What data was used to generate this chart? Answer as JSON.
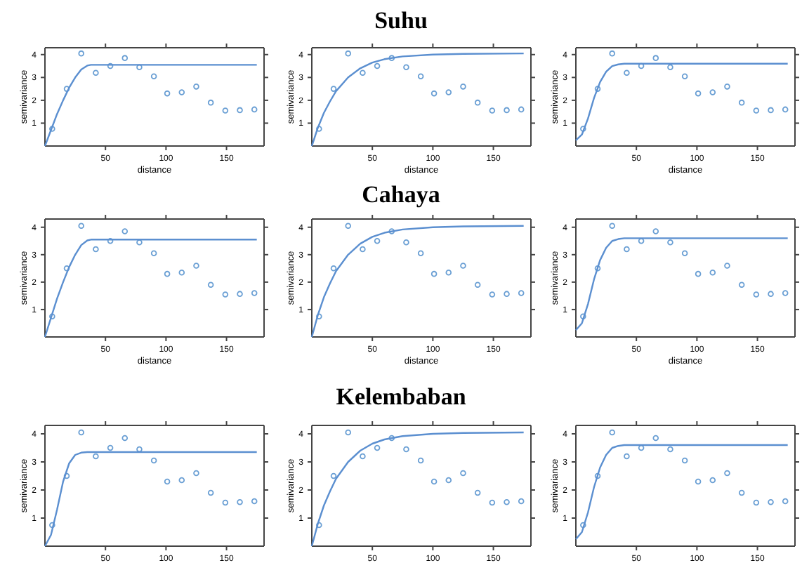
{
  "chart_data": [
    {
      "type": "scatter",
      "ylabel": "semivariance",
      "xlabel": "distance",
      "xlim": [
        0,
        181
      ],
      "ylim": [
        0,
        4.3
      ],
      "xticks": [
        50,
        100,
        150
      ],
      "yticks": [
        1,
        2,
        3,
        4
      ],
      "grid": false,
      "series": [
        {
          "marker": "circle",
          "color": "#6a9fd4",
          "x": [
            6,
            18,
            30,
            42,
            54,
            66,
            78,
            90,
            101,
            113,
            125,
            137,
            149,
            161,
            173
          ],
          "values": [
            0.75,
            2.5,
            4.05,
            3.2,
            3.5,
            3.85,
            3.45,
            3.05,
            2.3,
            2.35,
            2.6,
            1.9,
            1.55,
            1.57,
            1.6
          ]
        },
        {
          "type": "line",
          "marker": "none",
          "color": "#5b8fd0",
          "x": [
            0,
            5,
            10,
            15,
            20,
            25,
            30,
            35,
            38,
            175
          ],
          "values": [
            0,
            0.7,
            1.4,
            2.0,
            2.55,
            3.0,
            3.35,
            3.52,
            3.55,
            3.55
          ]
        }
      ]
    },
    {
      "type": "scatter",
      "title": "Suhu",
      "ylabel": "semivariance",
      "xlabel": "distance",
      "xlim": [
        0,
        181
      ],
      "ylim": [
        0,
        4.3
      ],
      "xticks": [
        50,
        100,
        150
      ],
      "yticks": [
        1,
        2,
        3,
        4
      ],
      "grid": false,
      "series": [
        {
          "marker": "circle",
          "color": "#6a9fd4",
          "x": [
            6,
            18,
            30,
            42,
            54,
            66,
            78,
            90,
            101,
            113,
            125,
            137,
            149,
            161,
            173
          ],
          "values": [
            0.75,
            2.5,
            4.05,
            3.2,
            3.5,
            3.85,
            3.45,
            3.05,
            2.3,
            2.35,
            2.6,
            1.9,
            1.55,
            1.57,
            1.6
          ]
        },
        {
          "type": "line",
          "marker": "none",
          "color": "#5b8fd0",
          "x": [
            0,
            5,
            10,
            15,
            20,
            30,
            40,
            50,
            60,
            75,
            100,
            125,
            175
          ],
          "values": [
            0,
            0.8,
            1.45,
            1.95,
            2.4,
            3.0,
            3.4,
            3.65,
            3.8,
            3.92,
            4.0,
            4.03,
            4.05
          ]
        }
      ]
    },
    {
      "type": "scatter",
      "ylabel": "semivariance",
      "xlabel": "distance",
      "xlim": [
        0,
        181
      ],
      "ylim": [
        0,
        4.3
      ],
      "xticks": [
        50,
        100,
        150
      ],
      "yticks": [
        1,
        2,
        3,
        4
      ],
      "grid": false,
      "series": [
        {
          "marker": "circle",
          "color": "#6a9fd4",
          "x": [
            6,
            18,
            30,
            42,
            54,
            66,
            78,
            90,
            101,
            113,
            125,
            137,
            149,
            161,
            173
          ],
          "values": [
            0.75,
            2.5,
            4.05,
            3.2,
            3.5,
            3.85,
            3.45,
            3.05,
            2.3,
            2.35,
            2.6,
            1.9,
            1.55,
            1.57,
            1.6
          ]
        },
        {
          "type": "line",
          "marker": "none",
          "color": "#5b8fd0",
          "x": [
            0,
            5,
            10,
            15,
            20,
            25,
            30,
            35,
            40,
            175
          ],
          "values": [
            0.25,
            0.5,
            1.2,
            2.1,
            2.8,
            3.25,
            3.5,
            3.57,
            3.6,
            3.6
          ]
        }
      ]
    },
    {
      "type": "scatter",
      "ylabel": "semivariance",
      "xlabel": "distance",
      "xlim": [
        0,
        181
      ],
      "ylim": [
        0,
        4.3
      ],
      "xticks": [
        50,
        100,
        150
      ],
      "yticks": [
        1,
        2,
        3,
        4
      ],
      "grid": false,
      "series": [
        {
          "marker": "circle",
          "color": "#6a9fd4",
          "x": [
            6,
            18,
            30,
            42,
            54,
            66,
            78,
            90,
            101,
            113,
            125,
            137,
            149,
            161,
            173
          ],
          "values": [
            0.75,
            2.5,
            4.05,
            3.2,
            3.5,
            3.85,
            3.45,
            3.05,
            2.3,
            2.35,
            2.6,
            1.9,
            1.55,
            1.57,
            1.6
          ]
        },
        {
          "type": "line",
          "marker": "none",
          "color": "#5b8fd0",
          "x": [
            0,
            5,
            10,
            15,
            20,
            25,
            30,
            35,
            38,
            175
          ],
          "values": [
            0,
            0.7,
            1.4,
            2.0,
            2.55,
            3.0,
            3.35,
            3.52,
            3.55,
            3.55
          ]
        }
      ]
    },
    {
      "type": "scatter",
      "title": "Cahaya",
      "ylabel": "semivariance",
      "xlabel": "distance",
      "xlim": [
        0,
        181
      ],
      "ylim": [
        0,
        4.3
      ],
      "xticks": [
        50,
        100,
        150
      ],
      "yticks": [
        1,
        2,
        3,
        4
      ],
      "grid": false,
      "series": [
        {
          "marker": "circle",
          "color": "#6a9fd4",
          "x": [
            6,
            18,
            30,
            42,
            54,
            66,
            78,
            90,
            101,
            113,
            125,
            137,
            149,
            161,
            173
          ],
          "values": [
            0.75,
            2.5,
            4.05,
            3.2,
            3.5,
            3.85,
            3.45,
            3.05,
            2.3,
            2.35,
            2.6,
            1.9,
            1.55,
            1.57,
            1.6
          ]
        },
        {
          "type": "line",
          "marker": "none",
          "color": "#5b8fd0",
          "x": [
            0,
            5,
            10,
            15,
            20,
            30,
            40,
            50,
            60,
            75,
            100,
            125,
            175
          ],
          "values": [
            0,
            0.8,
            1.45,
            1.95,
            2.4,
            3.0,
            3.4,
            3.65,
            3.8,
            3.92,
            4.0,
            4.03,
            4.05
          ]
        }
      ]
    },
    {
      "type": "scatter",
      "ylabel": "semivariance",
      "xlabel": "distance",
      "xlim": [
        0,
        181
      ],
      "ylim": [
        0,
        4.3
      ],
      "xticks": [
        50,
        100,
        150
      ],
      "yticks": [
        1,
        2,
        3,
        4
      ],
      "grid": false,
      "series": [
        {
          "marker": "circle",
          "color": "#6a9fd4",
          "x": [
            6,
            18,
            30,
            42,
            54,
            66,
            78,
            90,
            101,
            113,
            125,
            137,
            149,
            161,
            173
          ],
          "values": [
            0.75,
            2.5,
            4.05,
            3.2,
            3.5,
            3.85,
            3.45,
            3.05,
            2.3,
            2.35,
            2.6,
            1.9,
            1.55,
            1.57,
            1.6
          ]
        },
        {
          "type": "line",
          "marker": "none",
          "color": "#5b8fd0",
          "x": [
            0,
            5,
            10,
            15,
            20,
            25,
            30,
            35,
            40,
            175
          ],
          "values": [
            0.25,
            0.5,
            1.2,
            2.1,
            2.8,
            3.25,
            3.5,
            3.57,
            3.6,
            3.6
          ]
        }
      ]
    },
    {
      "type": "scatter",
      "ylabel": "semivariance",
      "xlim": [
        0,
        181
      ],
      "ylim": [
        0,
        4.3
      ],
      "xticks": [
        50,
        100,
        150
      ],
      "yticks": [
        1,
        2,
        3,
        4
      ],
      "grid": false,
      "series": [
        {
          "marker": "circle",
          "color": "#6a9fd4",
          "x": [
            6,
            18,
            30,
            42,
            54,
            66,
            78,
            90,
            101,
            113,
            125,
            137,
            149,
            161,
            173
          ],
          "values": [
            0.75,
            2.5,
            4.05,
            3.2,
            3.5,
            3.85,
            3.45,
            3.05,
            2.3,
            2.35,
            2.6,
            1.9,
            1.55,
            1.57,
            1.6
          ]
        },
        {
          "type": "line",
          "marker": "none",
          "color": "#5b8fd0",
          "x": [
            0,
            5,
            10,
            15,
            20,
            25,
            30,
            35,
            175
          ],
          "values": [
            0,
            0.4,
            1.3,
            2.3,
            2.95,
            3.25,
            3.33,
            3.35,
            3.35
          ]
        }
      ]
    },
    {
      "type": "scatter",
      "title": "Kelembaban",
      "ylabel": "semivariance",
      "xlim": [
        0,
        181
      ],
      "ylim": [
        0,
        4.3
      ],
      "xticks": [
        50,
        100,
        150
      ],
      "yticks": [
        1,
        2,
        3,
        4
      ],
      "grid": false,
      "series": [
        {
          "marker": "circle",
          "color": "#6a9fd4",
          "x": [
            6,
            18,
            30,
            42,
            54,
            66,
            78,
            90,
            101,
            113,
            125,
            137,
            149,
            161,
            173
          ],
          "values": [
            0.75,
            2.5,
            4.05,
            3.2,
            3.5,
            3.85,
            3.45,
            3.05,
            2.3,
            2.35,
            2.6,
            1.9,
            1.55,
            1.57,
            1.6
          ]
        },
        {
          "type": "line",
          "marker": "none",
          "color": "#5b8fd0",
          "x": [
            0,
            5,
            10,
            15,
            20,
            30,
            40,
            50,
            60,
            75,
            100,
            125,
            175
          ],
          "values": [
            0,
            0.8,
            1.45,
            1.95,
            2.4,
            3.0,
            3.4,
            3.65,
            3.8,
            3.92,
            4.0,
            4.03,
            4.05
          ]
        }
      ]
    },
    {
      "type": "scatter",
      "ylabel": "semivariance",
      "xlim": [
        0,
        181
      ],
      "ylim": [
        0,
        4.3
      ],
      "xticks": [
        50,
        100,
        150
      ],
      "yticks": [
        1,
        2,
        3,
        4
      ],
      "grid": false,
      "series": [
        {
          "marker": "circle",
          "color": "#6a9fd4",
          "x": [
            6,
            18,
            30,
            42,
            54,
            66,
            78,
            90,
            101,
            113,
            125,
            137,
            149,
            161,
            173
          ],
          "values": [
            0.75,
            2.5,
            4.05,
            3.2,
            3.5,
            3.85,
            3.45,
            3.05,
            2.3,
            2.35,
            2.6,
            1.9,
            1.55,
            1.57,
            1.6
          ]
        },
        {
          "type": "line",
          "marker": "none",
          "color": "#5b8fd0",
          "x": [
            0,
            5,
            10,
            15,
            20,
            25,
            30,
            35,
            40,
            175
          ],
          "values": [
            0.25,
            0.5,
            1.2,
            2.1,
            2.8,
            3.25,
            3.5,
            3.57,
            3.6,
            3.6
          ]
        }
      ]
    }
  ]
}
